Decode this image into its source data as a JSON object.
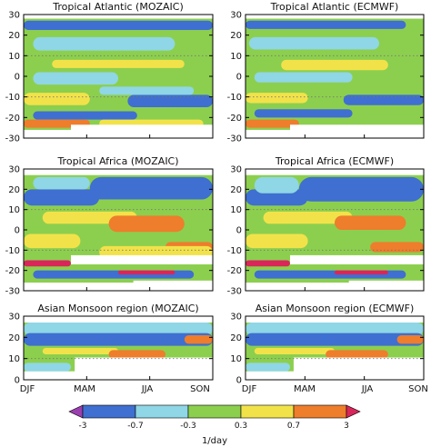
{
  "chart_data": {
    "type": "heatmap",
    "months": [
      "DJF",
      "MAM",
      "JJA",
      "SON"
    ],
    "colorbar": {
      "ticks": [
        "-3",
        "-0.7",
        "-0.3",
        "0.3",
        "0.7",
        "3"
      ],
      "label": "1/day",
      "bins": [
        {
          "range": "< -3",
          "color": "#9b3fb0"
        },
        {
          "range": "-3 to -0.7",
          "color": "#3f6fd0"
        },
        {
          "range": "-0.7 to -0.3",
          "color": "#8fd6e6"
        },
        {
          "range": "-0.3 to 0.3",
          "color": "#8ccf4e"
        },
        {
          "range": "0.3 to 0.7",
          "color": "#f2e24a"
        },
        {
          "range": "0.7 to 3",
          "color": "#ee7d2c"
        },
        {
          "range": "> 3",
          "color": "#d9265a"
        }
      ]
    },
    "panels": [
      {
        "id": "atl-mozaic",
        "title": "Tropical Atlantic (MOZAIC)",
        "ylim": [
          -30,
          30
        ],
        "yticks": [
          30,
          20,
          10,
          0,
          -10,
          -20,
          -30
        ],
        "data_lat": [
          -26,
          28
        ],
        "bands": [
          {
            "c": 1,
            "y1": 22.5,
            "y2": 27,
            "x1": 0,
            "x2": 1
          },
          {
            "c": 2,
            "y1": 12.5,
            "y2": 19,
            "x1": 0.05,
            "x2": 0.8
          },
          {
            "c": 4,
            "y1": 4,
            "y2": 8,
            "x1": 0.15,
            "x2": 0.85
          },
          {
            "c": 2,
            "y1": -4,
            "y2": 2,
            "x1": 0.05,
            "x2": 0.5
          },
          {
            "c": 1,
            "y1": -15,
            "y2": -9,
            "x1": 0.55,
            "x2": 1
          },
          {
            "c": 2,
            "y1": -9,
            "y2": -5,
            "x1": 0.4,
            "x2": 0.9
          },
          {
            "c": 4,
            "y1": -14,
            "y2": -8,
            "x1": 0,
            "x2": 0.35
          },
          {
            "c": 1,
            "y1": -21,
            "y2": -17,
            "x1": 0.05,
            "x2": 0.6
          },
          {
            "c": 5,
            "y1": -25,
            "y2": -21,
            "x1": 0,
            "x2": 0.35
          },
          {
            "c": 4,
            "y1": -25,
            "y2": -21,
            "x1": 0.4,
            "x2": 0.95
          }
        ],
        "mask": [
          {
            "x1": 0.25,
            "x2": 1,
            "y1": -30,
            "y2": -23.5
          }
        ]
      },
      {
        "id": "atl-ecmwf",
        "title": "Tropical Atlantic (ECMWF)",
        "ylim": [
          -30,
          30
        ],
        "yticks": [
          30,
          20,
          10,
          0,
          -10,
          -20,
          -30
        ],
        "data_lat": [
          -26,
          28
        ],
        "bands": [
          {
            "c": 1,
            "y1": 23,
            "y2": 27,
            "x1": 0,
            "x2": 0.9
          },
          {
            "c": 2,
            "y1": 13,
            "y2": 19,
            "x1": 0.02,
            "x2": 0.75
          },
          {
            "c": 4,
            "y1": 3,
            "y2": 8,
            "x1": 0.2,
            "x2": 0.8
          },
          {
            "c": 2,
            "y1": -3,
            "y2": 2,
            "x1": 0.05,
            "x2": 0.6
          },
          {
            "c": 1,
            "y1": -14,
            "y2": -9,
            "x1": 0.55,
            "x2": 1
          },
          {
            "c": 4,
            "y1": -13,
            "y2": -8,
            "x1": 0,
            "x2": 0.35
          },
          {
            "c": 1,
            "y1": -20,
            "y2": -16,
            "x1": 0.05,
            "x2": 0.6
          },
          {
            "c": 5,
            "y1": -25,
            "y2": -21,
            "x1": 0,
            "x2": 0.3
          }
        ],
        "mask": [
          {
            "x1": 0.25,
            "x2": 1,
            "y1": -30,
            "y2": -23.5
          }
        ]
      },
      {
        "id": "afr-mozaic",
        "title": "Tropical Africa (MOZAIC)",
        "ylim": [
          -30,
          30
        ],
        "yticks": [
          30,
          20,
          10,
          0,
          -10,
          -20,
          -30
        ],
        "data_lat": [
          -26,
          27
        ],
        "bands": [
          {
            "c": 1,
            "y1": 15,
            "y2": 26,
            "x1": 0.35,
            "x2": 1
          },
          {
            "c": 1,
            "y1": 12,
            "y2": 20,
            "x1": 0,
            "x2": 0.4
          },
          {
            "c": 2,
            "y1": 20,
            "y2": 26,
            "x1": 0.05,
            "x2": 0.35
          },
          {
            "c": 4,
            "y1": 3,
            "y2": 9,
            "x1": 0.1,
            "x2": 0.6
          },
          {
            "c": 5,
            "y1": -1,
            "y2": 7,
            "x1": 0.45,
            "x2": 0.85
          },
          {
            "c": 4,
            "y1": -9,
            "y2": -2,
            "x1": 0,
            "x2": 0.3
          },
          {
            "c": 5,
            "y1": -11,
            "y2": -6,
            "x1": 0.75,
            "x2": 1
          },
          {
            "c": 4,
            "y1": -14,
            "y2": -8,
            "x1": 0.4,
            "x2": 1
          },
          {
            "c": 6,
            "y1": -18,
            "y2": -15,
            "x1": 0,
            "x2": 0.25
          },
          {
            "c": 1,
            "y1": -24,
            "y2": -20,
            "x1": 0.05,
            "x2": 0.9
          },
          {
            "c": 6,
            "y1": -22,
            "y2": -20,
            "x1": 0.5,
            "x2": 0.8
          }
        ],
        "mask": [
          {
            "x1": 0.25,
            "x2": 1,
            "y1": -17,
            "y2": -12.5
          },
          {
            "x1": 0.58,
            "x2": 1,
            "y1": -30,
            "y2": -25
          }
        ]
      },
      {
        "id": "afr-ecmwf",
        "title": "Tropical Africa (ECMWF)",
        "ylim": [
          -30,
          30
        ],
        "yticks": [
          30,
          20,
          10,
          0,
          -10,
          -20,
          -30
        ],
        "data_lat": [
          -26,
          27
        ],
        "bands": [
          {
            "c": 1,
            "y1": 14,
            "y2": 26,
            "x1": 0.3,
            "x2": 1
          },
          {
            "c": 1,
            "y1": 12,
            "y2": 20,
            "x1": 0,
            "x2": 0.35
          },
          {
            "c": 2,
            "y1": 18,
            "y2": 26,
            "x1": 0.05,
            "x2": 0.3
          },
          {
            "c": 4,
            "y1": 3,
            "y2": 9,
            "x1": 0.1,
            "x2": 0.6
          },
          {
            "c": 5,
            "y1": 0,
            "y2": 7,
            "x1": 0.5,
            "x2": 0.9
          },
          {
            "c": 4,
            "y1": -9,
            "y2": -2,
            "x1": 0,
            "x2": 0.35
          },
          {
            "c": 5,
            "y1": -11,
            "y2": -6,
            "x1": 0.7,
            "x2": 1
          },
          {
            "c": 6,
            "y1": -18,
            "y2": -15,
            "x1": 0,
            "x2": 0.25
          },
          {
            "c": 1,
            "y1": -24,
            "y2": -20,
            "x1": 0.05,
            "x2": 0.9
          },
          {
            "c": 6,
            "y1": -22,
            "y2": -20,
            "x1": 0.5,
            "x2": 0.8
          }
        ],
        "mask": [
          {
            "x1": 0.25,
            "x2": 1,
            "y1": -17,
            "y2": -12.5
          },
          {
            "x1": 0.58,
            "x2": 1,
            "y1": -30,
            "y2": -25
          }
        ]
      },
      {
        "id": "asia-mozaic",
        "title": "Asian Monsoon region (MOZAIC)",
        "ylim": [
          0,
          30
        ],
        "yticks": [
          30,
          20,
          10,
          0
        ],
        "data_lat": [
          4,
          27
        ],
        "bands": [
          {
            "c": 2,
            "y1": 21,
            "y2": 27,
            "x1": 0,
            "x2": 1
          },
          {
            "c": 1,
            "y1": 16,
            "y2": 22,
            "x1": 0,
            "x2": 1
          },
          {
            "c": 4,
            "y1": 12,
            "y2": 15,
            "x1": 0.1,
            "x2": 0.5
          },
          {
            "c": 5,
            "y1": 10,
            "y2": 14,
            "x1": 0.45,
            "x2": 0.75
          },
          {
            "c": 5,
            "y1": 17,
            "y2": 21,
            "x1": 0.85,
            "x2": 1
          },
          {
            "c": 2,
            "y1": 4,
            "y2": 8,
            "x1": 0,
            "x2": 0.25
          }
        ],
        "mask": [
          {
            "x1": 0.27,
            "x2": 1,
            "y1": 0,
            "y2": 10.5
          }
        ]
      },
      {
        "id": "asia-ecmwf",
        "title": "Asian Monsoon region (ECMWF)",
        "ylim": [
          0,
          30
        ],
        "yticks": [
          30,
          20,
          10,
          0
        ],
        "data_lat": [
          4,
          27
        ],
        "bands": [
          {
            "c": 2,
            "y1": 21,
            "y2": 27,
            "x1": 0,
            "x2": 1
          },
          {
            "c": 1,
            "y1": 16,
            "y2": 22,
            "x1": 0,
            "x2": 1
          },
          {
            "c": 4,
            "y1": 12,
            "y2": 15,
            "x1": 0.05,
            "x2": 0.5
          },
          {
            "c": 5,
            "y1": 10,
            "y2": 14,
            "x1": 0.45,
            "x2": 0.8
          },
          {
            "c": 5,
            "y1": 17,
            "y2": 21,
            "x1": 0.85,
            "x2": 1
          },
          {
            "c": 2,
            "y1": 4,
            "y2": 8,
            "x1": 0,
            "x2": 0.25
          }
        ],
        "mask": [
          {
            "x1": 0.27,
            "x2": 1,
            "y1": 0,
            "y2": 10.5
          }
        ]
      }
    ]
  }
}
